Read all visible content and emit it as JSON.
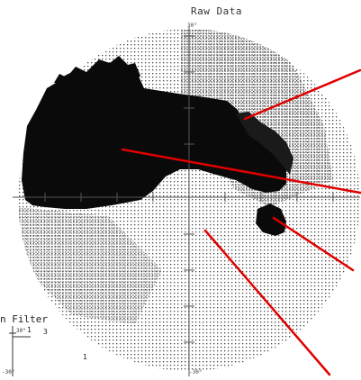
{
  "figure": {
    "title": "Raw Data",
    "tick_top": "30°",
    "tick_bottom": "-30°",
    "colors": {
      "background": "#ffffff",
      "dots": "#444444",
      "defect": "#0a0a0a",
      "axes": "#555555",
      "pointer_lines": "#e00000"
    }
  },
  "inset": {
    "label": "n Filter",
    "tick_top": "30°",
    "tick_bottom": "-30°",
    "numbers": [
      "1",
      "3",
      "1"
    ]
  }
}
